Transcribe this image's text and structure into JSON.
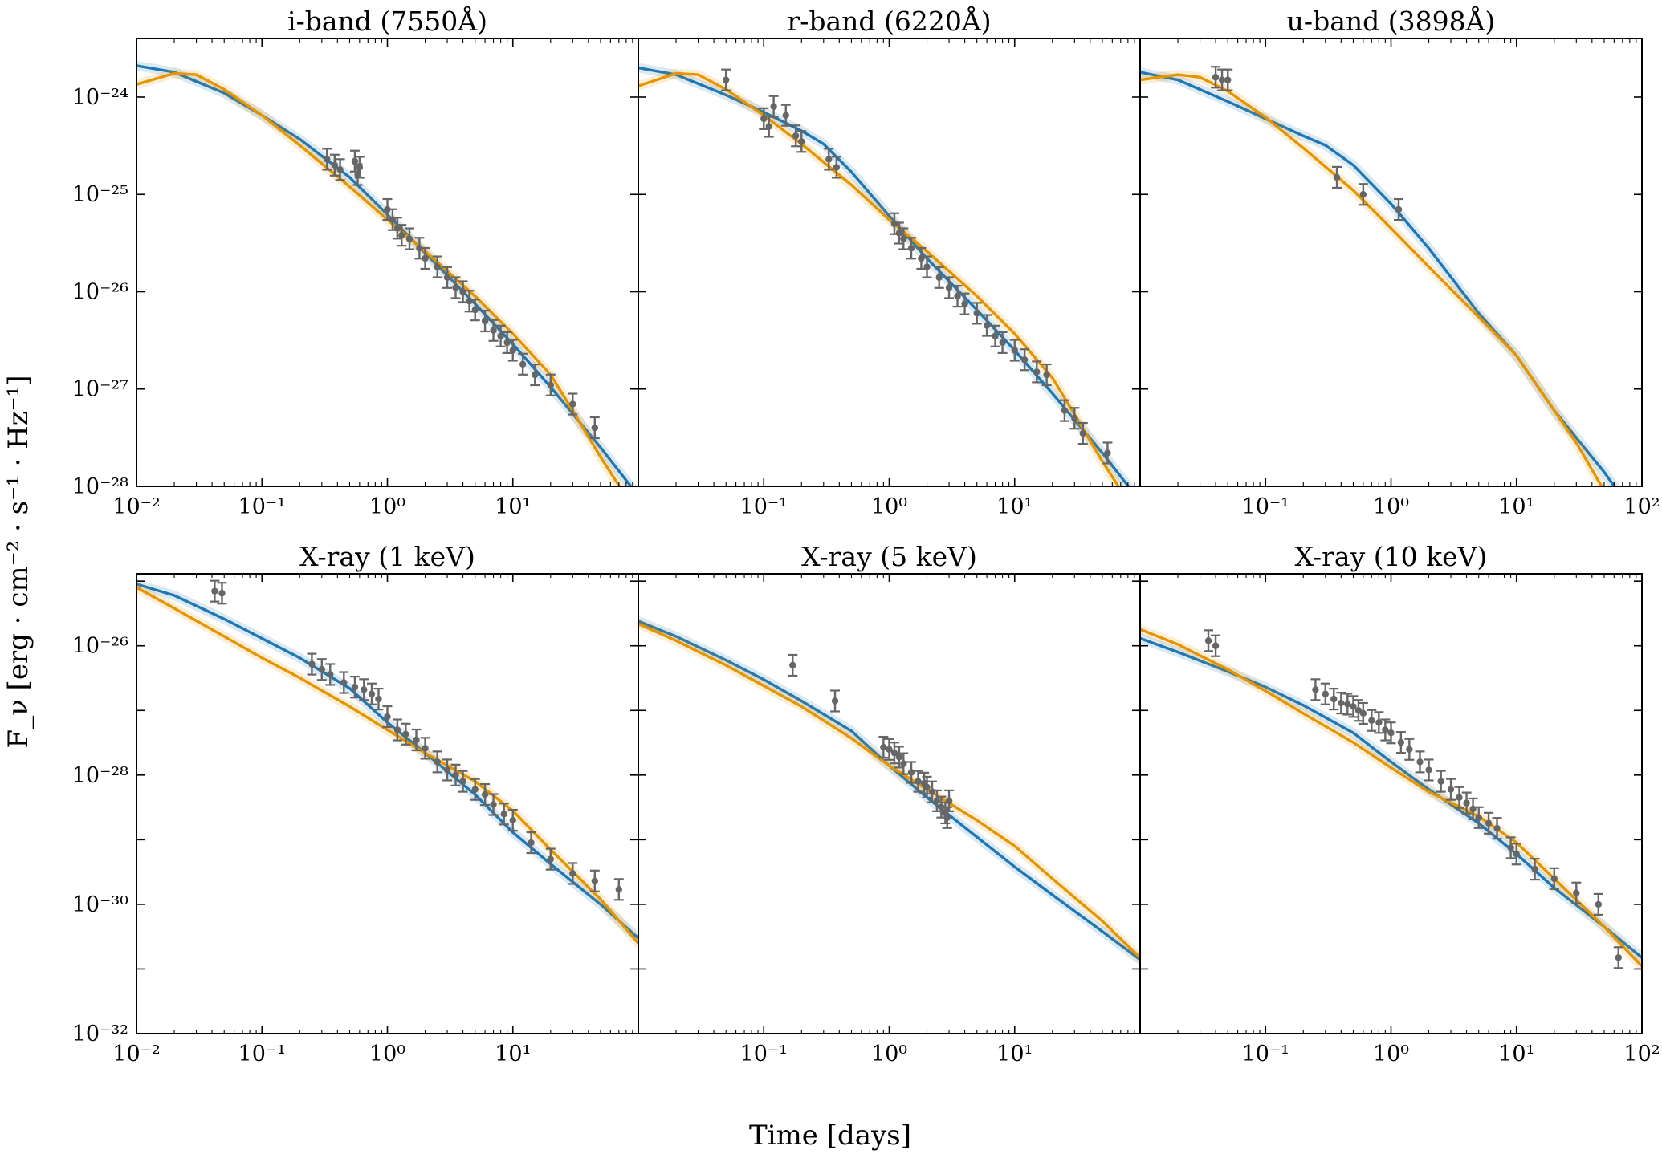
{
  "figure": {
    "ylabel": "F_ν [erg · cm⁻² · s⁻¹ · Hz⁻¹]",
    "xlabel": "Time [days]"
  },
  "colors": {
    "model_blue": "#1f77b4",
    "model_orange": "#e69500",
    "data_gray": "#666666"
  },
  "chart_data": [
    {
      "type": "line",
      "title": "i-band (7550Å)",
      "xscale": "log",
      "yscale": "log",
      "xlim": [
        0.01,
        100
      ],
      "ylim": [
        1e-28,
        4e-24
      ],
      "xticks": [
        "10⁻²",
        "10⁻¹",
        "10⁰",
        "10¹"
      ],
      "yticks": [
        "10⁻²⁴",
        "10⁻²⁵",
        "10⁻²⁶",
        "10⁻²⁷",
        "10⁻²⁸"
      ],
      "series": [
        {
          "color": "model_blue",
          "x": [
            0.01,
            0.02,
            0.05,
            0.1,
            0.2,
            0.5,
            1,
            2,
            5,
            10,
            20,
            50,
            100
          ],
          "y": [
            2.1e-24,
            1.8e-24,
            1.1e-24,
            6.5e-25,
            3.7e-25,
            1.5e-25,
            6.2e-26,
            2.5e-26,
            7.5e-27,
            2.9e-27,
            1.05e-27,
            2.5e-28,
            8e-29
          ]
        },
        {
          "color": "model_orange",
          "x": [
            0.01,
            0.02,
            0.03,
            0.05,
            0.1,
            0.2,
            0.5,
            1,
            2,
            5,
            10,
            20,
            30,
            50,
            100
          ],
          "y": [
            1.35e-24,
            1.75e-24,
            1.7e-24,
            1.2e-24,
            6.5e-25,
            3.2e-25,
            1.2e-25,
            5.5e-26,
            2.6e-26,
            9e-27,
            3.7e-27,
            1.4e-27,
            6e-28,
            2e-28,
            5e-29
          ]
        }
      ],
      "points": {
        "color": "data_gray",
        "x": [
          0.33,
          0.38,
          0.42,
          0.55,
          0.58,
          0.6,
          1.0,
          1.1,
          1.2,
          1.3,
          1.5,
          1.8,
          2.0,
          2.5,
          3.0,
          3.5,
          4.0,
          4.5,
          5.0,
          6.0,
          7.0,
          8.0,
          9.0,
          10.0,
          12.0,
          15.0,
          20.0,
          30.0,
          45.0
        ],
        "y": [
          2.3e-25,
          2e-25,
          1.8e-25,
          2.2e-25,
          1.6e-25,
          1.9e-25,
          7e-26,
          5.5e-26,
          4.5e-26,
          3.8e-26,
          3.5e-26,
          2.8e-26,
          2.2e-26,
          1.8e-26,
          1.4e-26,
          1.1e-26,
          1e-26,
          8e-27,
          6.5e-27,
          5e-27,
          4e-27,
          3.5e-27,
          3e-27,
          2.5e-27,
          1.8e-27,
          1.4e-27,
          1.1e-27,
          7e-28,
          4e-28
        ]
      }
    },
    {
      "type": "line",
      "title": "r-band (6220Å)",
      "xscale": "log",
      "yscale": "log",
      "xlim": [
        0.01,
        100
      ],
      "ylim": [
        1e-28,
        4e-24
      ],
      "xticks": [
        "10⁻¹",
        "10⁰",
        "10¹"
      ],
      "yticks": [],
      "series": [
        {
          "color": "model_blue",
          "x": [
            0.01,
            0.02,
            0.05,
            0.1,
            0.2,
            0.3,
            0.5,
            1,
            2,
            5,
            10,
            20,
            50,
            100
          ],
          "y": [
            2e-24,
            1.7e-24,
            1.05e-24,
            7e-25,
            4.5e-25,
            3.3e-25,
            1.7e-25,
            6e-26,
            2.2e-26,
            6.5e-27,
            2.5e-27,
            9e-28,
            2.2e-28,
            7e-29
          ]
        },
        {
          "color": "model_orange",
          "x": [
            0.01,
            0.02,
            0.03,
            0.05,
            0.1,
            0.2,
            0.5,
            1,
            2,
            5,
            10,
            20,
            30,
            50,
            100
          ],
          "y": [
            1.3e-24,
            1.75e-24,
            1.7e-24,
            1.2e-24,
            6.5e-25,
            3.3e-25,
            1.25e-25,
            5.5e-26,
            2.6e-26,
            9e-27,
            3.7e-27,
            1.3e-27,
            5.5e-28,
            1.8e-28,
            4.5e-29
          ]
        }
      ],
      "points": {
        "color": "data_gray",
        "x": [
          0.05,
          0.1,
          0.11,
          0.12,
          0.15,
          0.18,
          0.2,
          0.33,
          0.38,
          1.1,
          1.2,
          1.3,
          1.5,
          1.8,
          2.0,
          2.5,
          3.0,
          3.5,
          4.0,
          5.0,
          6.0,
          7.0,
          8.0,
          10.0,
          12.0,
          15.0,
          18.0,
          25.0,
          30.0,
          35.0,
          55.0
        ],
        "y": [
          1.5e-24,
          6e-25,
          5e-25,
          8e-25,
          6.5e-25,
          4e-25,
          3.5e-25,
          2.3e-25,
          1.9e-25,
          5e-26,
          4e-26,
          3.5e-26,
          2.8e-26,
          2.2e-26,
          1.8e-26,
          1.4e-26,
          1.1e-26,
          9e-27,
          7.5e-27,
          6e-27,
          4.5e-27,
          3.5e-27,
          3e-27,
          2.5e-27,
          2e-27,
          1.5e-27,
          1.4e-27,
          6e-28,
          5e-28,
          3.5e-28,
          2.2e-28
        ]
      }
    },
    {
      "type": "line",
      "title": "u-band (3898Å)",
      "xscale": "log",
      "yscale": "log",
      "xlim": [
        0.01,
        100
      ],
      "ylim": [
        1e-28,
        4e-24
      ],
      "xticks": [
        "10⁻¹",
        "10⁰",
        "10¹",
        "10²"
      ],
      "yticks": [],
      "series": [
        {
          "color": "model_blue",
          "x": [
            0.01,
            0.02,
            0.05,
            0.1,
            0.2,
            0.3,
            0.5,
            1,
            2,
            5,
            10,
            20,
            50,
            100
          ],
          "y": [
            1.8e-24,
            1.5e-24,
            9e-25,
            6e-25,
            4e-25,
            3.2e-25,
            2e-25,
            8e-26,
            2.8e-26,
            6e-27,
            2.2e-27,
            6e-28,
            1.4e-28,
            4e-29
          ]
        },
        {
          "color": "model_orange",
          "x": [
            0.01,
            0.02,
            0.03,
            0.05,
            0.1,
            0.2,
            0.5,
            1,
            2,
            5,
            10,
            20,
            30,
            50,
            100
          ],
          "y": [
            1.5e-24,
            1.7e-24,
            1.6e-24,
            1.15e-24,
            6.2e-25,
            3e-25,
            1.1e-25,
            4.5e-26,
            1.8e-26,
            5.5e-27,
            2.2e-27,
            6e-28,
            2.8e-28,
            9e-29,
            2.5e-29
          ]
        }
      ],
      "points": {
        "color": "data_gray",
        "x": [
          0.04,
          0.045,
          0.05,
          0.37,
          0.6,
          1.15
        ],
        "y": [
          1.6e-24,
          1.5e-24,
          1.5e-24,
          1.5e-25,
          1e-25,
          7e-26
        ]
      }
    },
    {
      "type": "line",
      "title": "X-ray (1 keV)",
      "xscale": "log",
      "yscale": "log",
      "xlim": [
        0.01,
        100
      ],
      "ylim": [
        1e-32,
        1.3e-25
      ],
      "xticks": [
        "10⁻²",
        "10⁻¹",
        "10⁰",
        "10¹"
      ],
      "yticks": [
        "10⁻²⁶",
        "10⁻²⁸",
        "10⁻³⁰",
        "10⁻³²"
      ],
      "series": [
        {
          "color": "model_blue",
          "x": [
            0.01,
            0.02,
            0.05,
            0.1,
            0.2,
            0.5,
            1,
            2,
            5,
            10,
            20,
            50,
            100
          ],
          "y": [
            9e-26,
            6e-26,
            2.6e-26,
            1.3e-26,
            6.5e-27,
            2.2e-27,
            6.5e-28,
            2.2e-28,
            5e-29,
            1.3e-29,
            4.2e-30,
            1e-30,
            3e-31
          ]
        },
        {
          "color": "model_orange",
          "x": [
            0.01,
            0.02,
            0.05,
            0.1,
            0.2,
            0.5,
            1,
            2,
            5,
            10,
            20,
            50,
            100
          ],
          "y": [
            8e-26,
            3.8e-26,
            1.4e-26,
            6.5e-27,
            3.2e-27,
            1.15e-27,
            5e-28,
            2.2e-28,
            8e-29,
            2.8e-29,
            7e-30,
            1.2e-30,
            2.5e-31
          ]
        }
      ],
      "points": {
        "color": "data_gray",
        "x": [
          0.042,
          0.048,
          0.25,
          0.3,
          0.35,
          0.45,
          0.55,
          0.65,
          0.75,
          0.85,
          1.0,
          1.2,
          1.4,
          1.7,
          2.0,
          2.5,
          3.0,
          3.5,
          4.0,
          5.0,
          6.0,
          7.0,
          8.5,
          10.0,
          14.0,
          20.0,
          30.0,
          45.0,
          70.0
        ],
        "y": [
          7e-26,
          6.5e-26,
          5.2e-27,
          4.3e-27,
          3.6e-27,
          2.7e-27,
          2.3e-27,
          2.1e-27,
          1.8e-27,
          1.5e-27,
          8e-28,
          5e-28,
          4.3e-28,
          3.5e-28,
          2.6e-28,
          1.6e-28,
          1.2e-28,
          1e-28,
          8e-29,
          6e-29,
          5e-29,
          3.5e-29,
          2.5e-29,
          2e-29,
          9e-30,
          5e-30,
          3e-30,
          2.3e-30,
          1.7e-30
        ]
      }
    },
    {
      "type": "line",
      "title": "X-ray (5 keV)",
      "xscale": "log",
      "yscale": "log",
      "xlim": [
        0.01,
        100
      ],
      "ylim": [
        1e-32,
        1.3e-25
      ],
      "xticks": [
        "10⁻¹",
        "10⁰",
        "10¹"
      ],
      "yticks": [],
      "series": [
        {
          "color": "model_blue",
          "x": [
            0.01,
            0.02,
            0.05,
            0.1,
            0.2,
            0.5,
            1,
            2,
            5,
            10,
            20,
            50,
            100
          ],
          "y": [
            2.4e-26,
            1.4e-26,
            6e-27,
            3e-27,
            1.4e-27,
            4.8e-28,
            1.4e-28,
            4.5e-29,
            1.1e-29,
            3.8e-30,
            1.4e-30,
            3.8e-31,
            1.4e-31
          ]
        },
        {
          "color": "model_orange",
          "x": [
            0.01,
            0.02,
            0.05,
            0.1,
            0.2,
            0.5,
            1,
            2,
            5,
            10,
            20,
            50,
            100
          ],
          "y": [
            2.2e-26,
            1.2e-26,
            5e-27,
            2.4e-27,
            1.15e-27,
            3.7e-28,
            1.4e-28,
            6e-29,
            2e-29,
            8e-30,
            2.5e-30,
            5.5e-31,
            1.5e-31
          ]
        }
      ],
      "points": {
        "color": "data_gray",
        "x": [
          0.17,
          0.37,
          0.9,
          1.0,
          1.1,
          1.2,
          1.3,
          1.5,
          1.7,
          1.9,
          2.0,
          2.2,
          2.4,
          2.6,
          2.8,
          2.9,
          3.0
        ],
        "y": [
          5e-27,
          1.4e-27,
          2.7e-28,
          2.5e-28,
          2.2e-28,
          1.9e-28,
          1.5e-28,
          1.1e-28,
          8e-29,
          7.5e-29,
          6.5e-29,
          5.5e-29,
          4e-29,
          3.2e-29,
          2.6e-29,
          2.2e-29,
          4e-29
        ]
      }
    },
    {
      "type": "line",
      "title": "X-ray (10 keV)",
      "xscale": "log",
      "yscale": "log",
      "xlim": [
        0.01,
        100
      ],
      "ylim": [
        1e-32,
        1.3e-25
      ],
      "xticks": [
        "10⁻¹",
        "10⁰",
        "10¹",
        "10²"
      ],
      "yticks": [],
      "series": [
        {
          "color": "model_blue",
          "x": [
            0.01,
            0.02,
            0.05,
            0.1,
            0.2,
            0.5,
            1,
            2,
            5,
            10,
            20,
            50,
            100
          ],
          "y": [
            1.3e-26,
            8e-27,
            4e-27,
            2.3e-27,
            1.2e-27,
            4.5e-28,
            1.6e-28,
            6e-29,
            1.8e-29,
            6e-30,
            1.8e-30,
            4.5e-31,
            1.5e-31
          ]
        },
        {
          "color": "model_orange",
          "x": [
            0.01,
            0.02,
            0.05,
            0.1,
            0.2,
            0.5,
            1,
            2,
            5,
            10,
            20,
            50,
            100
          ],
          "y": [
            1.8e-26,
            1.05e-26,
            4.3e-27,
            2e-27,
            9e-28,
            3.2e-28,
            1.3e-28,
            5.5e-29,
            2.3e-29,
            9e-30,
            2.5e-30,
            4.5e-31,
            1.1e-31
          ]
        }
      ],
      "points": {
        "color": "data_gray",
        "x": [
          0.035,
          0.04,
          0.25,
          0.3,
          0.35,
          0.4,
          0.45,
          0.5,
          0.55,
          0.6,
          0.7,
          0.8,
          0.9,
          1.0,
          1.2,
          1.4,
          1.7,
          2.0,
          2.5,
          3.0,
          3.5,
          4.0,
          4.5,
          5.0,
          6.0,
          7.0,
          9.0,
          10.0,
          14.0,
          20.0,
          30.0,
          45.0,
          65.0
        ],
        "y": [
          1.2e-26,
          1e-26,
          2.1e-27,
          1.8e-27,
          1.5e-27,
          1.3e-27,
          1.25e-27,
          1.15e-27,
          1e-27,
          9e-28,
          7e-28,
          6.5e-28,
          5e-28,
          4.5e-28,
          3.2e-28,
          2.5e-28,
          1.6e-28,
          1.2e-28,
          8e-29,
          6e-29,
          4.5e-29,
          3.7e-29,
          3e-29,
          2.2e-29,
          1.8e-29,
          1.5e-29,
          7.5e-30,
          6e-30,
          3.5e-30,
          2.5e-30,
          1.5e-30,
          1e-30,
          1.5e-31
        ]
      }
    }
  ]
}
